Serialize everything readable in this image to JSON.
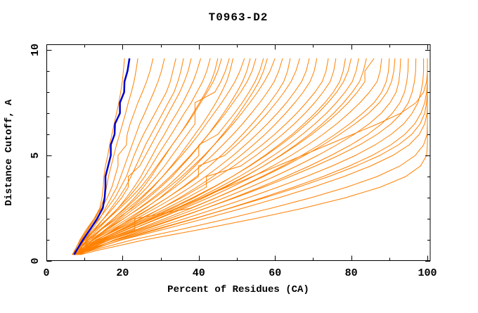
{
  "window": {
    "background": "#ffffff"
  },
  "chart_data": {
    "type": "line",
    "title": "T0963-D2",
    "xlabel": "Percent of Residues (CA)",
    "ylabel": "Distance Cutoff, A",
    "xlim": [
      0,
      100
    ],
    "ylim": [
      0,
      10
    ],
    "x_major_ticks": [
      0,
      20,
      40,
      60,
      80,
      100
    ],
    "x_minor_ticks": [
      10,
      30,
      50,
      70,
      90
    ],
    "y_major_ticks": [
      0,
      5,
      10
    ],
    "y_minor_ticks": [
      1,
      2,
      3,
      4,
      6,
      7,
      8,
      9
    ],
    "grid": false,
    "legend": "none",
    "axis_color": "#000000",
    "reference_color": "#0000cd",
    "model_color": "#ff8000",
    "cutoffs": [
      0.3,
      0.5,
      1,
      1.5,
      2,
      2.5,
      3,
      3.5,
      4,
      4.5,
      5,
      5.5,
      6,
      6.5,
      7,
      7.5,
      8,
      8.5,
      9,
      9.6
    ],
    "reference_series": {
      "name": "blue-reference",
      "values": [
        7.3,
        7.9,
        9.6,
        11.5,
        13.3,
        14.8,
        15.3,
        15.5,
        15.5,
        16.2,
        16.9,
        16.9,
        17.9,
        18.0,
        19.3,
        19.3,
        20.4,
        20.5,
        21.3,
        21.8
      ]
    },
    "model_series": [
      [
        7.0,
        7.5,
        8.8,
        10.5,
        12.5,
        14.0,
        14.6,
        14.9,
        15.1,
        15.5,
        16.1,
        16.6,
        17.2,
        17.8,
        18.4,
        19.0,
        19.5,
        19.9,
        20.2,
        20.5
      ],
      [
        7.2,
        7.8,
        9.2,
        11.0,
        12.8,
        14.2,
        15.2,
        15.8,
        16.3,
        17.0,
        17.7,
        18.4,
        19.2,
        20.0,
        20.8,
        21.5,
        22.3,
        23.0,
        23.5,
        24.0
      ],
      [
        6.8,
        7.4,
        9.0,
        10.8,
        12.5,
        14.5,
        16.0,
        17.2,
        18.0,
        18.8,
        18.8,
        21.0,
        21.2,
        22.0,
        23.0,
        24.0,
        25.2,
        26.3,
        27.2,
        28.0
      ],
      [
        7.5,
        8.2,
        10.0,
        12.0,
        14.0,
        15.5,
        17.0,
        18.5,
        19.5,
        20.5,
        21.5,
        22.5,
        23.5,
        24.5,
        25.8,
        27.0,
        28.2,
        29.3,
        30.2,
        31.0
      ],
      [
        7.0,
        7.8,
        9.5,
        11.5,
        13.8,
        16.0,
        18.0,
        19.5,
        21.0,
        22.0,
        23.0,
        24.2,
        25.5,
        27.0,
        28.5,
        30.0,
        31.5,
        32.5,
        33.2,
        34.0
      ],
      [
        8.0,
        8.8,
        10.5,
        12.8,
        15.0,
        17.0,
        19.0,
        20.8,
        22.2,
        23.5,
        24.8,
        26.0,
        27.5,
        29.0,
        30.5,
        32.0,
        33.5,
        34.5,
        35.3,
        36.0
      ],
      [
        7.3,
        8.0,
        10.0,
        12.5,
        15.0,
        17.5,
        19.8,
        21.5,
        21.5,
        24.5,
        26.0,
        27.5,
        29.0,
        30.5,
        32.0,
        33.5,
        35.0,
        36.2,
        37.2,
        38.0
      ],
      [
        7.8,
        8.6,
        10.8,
        13.5,
        16.2,
        18.8,
        21.0,
        23.0,
        24.8,
        26.3,
        27.8,
        29.3,
        31.0,
        32.5,
        34.2,
        35.8,
        37.2,
        38.5,
        39.5,
        40.5
      ],
      [
        7.0,
        8.0,
        10.2,
        13.0,
        16.0,
        18.8,
        21.5,
        23.8,
        25.8,
        27.5,
        29.2,
        31.0,
        32.8,
        34.5,
        36.2,
        38.0,
        39.5,
        41.0,
        42.1,
        43.0
      ],
      [
        8.2,
        9.0,
        11.5,
        14.5,
        17.5,
        20.5,
        23.2,
        25.5,
        27.5,
        29.3,
        31.2,
        33.0,
        35.0,
        36.8,
        38.5,
        40.2,
        41.8,
        43.2,
        44.2,
        45.0
      ],
      [
        6.9,
        7.8,
        10.0,
        13.0,
        16.2,
        19.3,
        22.2,
        24.8,
        27.0,
        29.0,
        31.0,
        33.0,
        35.0,
        37.0,
        38.8,
        40.5,
        42.2,
        43.8,
        45.0,
        46.0
      ],
      [
        7.5,
        8.5,
        11.0,
        14.2,
        17.5,
        20.8,
        23.8,
        26.5,
        28.8,
        31.0,
        33.0,
        35.0,
        37.0,
        39.0,
        39.0,
        39.0,
        44.2,
        45.8,
        47.0,
        48.0
      ],
      [
        8.5,
        9.5,
        12.2,
        15.5,
        19.0,
        22.2,
        25.2,
        28.0,
        30.5,
        32.8,
        35.0,
        37.0,
        39.0,
        41.0,
        42.8,
        44.5,
        46.0,
        47.3,
        48.2,
        49.0
      ],
      [
        7.2,
        8.2,
        11.0,
        14.5,
        18.0,
        21.5,
        24.8,
        27.8,
        30.5,
        33.0,
        35.5,
        37.8,
        40.0,
        42.0,
        44.0,
        46.0,
        47.8,
        49.5,
        50.8,
        52.0
      ],
      [
        8.0,
        9.0,
        12.0,
        15.8,
        19.5,
        23.2,
        26.8,
        30.0,
        33.0,
        35.5,
        38.0,
        40.3,
        42.5,
        44.5,
        46.5,
        48.3,
        50.0,
        51.5,
        52.6,
        53.5
      ],
      [
        6.7,
        7.8,
        10.8,
        14.5,
        18.5,
        22.5,
        26.2,
        29.5,
        32.5,
        35.2,
        37.8,
        40.2,
        42.5,
        44.8,
        47.0,
        49.0,
        51.0,
        52.7,
        54.0,
        55.0
      ],
      [
        7.8,
        9.0,
        12.2,
        16.2,
        20.3,
        24.3,
        28.0,
        31.5,
        34.5,
        37.3,
        40.0,
        40.0,
        45.0,
        47.2,
        49.4,
        51.4,
        53.2,
        54.8,
        56.0,
        57.0
      ],
      [
        8.8,
        10.0,
        13.5,
        17.8,
        22.0,
        26.0,
        29.8,
        33.2,
        36.2,
        39.0,
        41.6,
        44.0,
        46.3,
        48.5,
        50.5,
        52.4,
        54.2,
        55.8,
        57.0,
        58.0
      ],
      [
        7.0,
        8.2,
        11.5,
        15.8,
        20.2,
        24.5,
        28.5,
        32.2,
        35.5,
        38.5,
        41.4,
        44.0,
        46.6,
        49.0,
        51.3,
        53.4,
        55.4,
        57.2,
        58.7,
        60.0
      ],
      [
        7.5,
        8.8,
        12.2,
        16.8,
        21.3,
        25.8,
        30.0,
        33.8,
        37.3,
        40.5,
        43.5,
        46.3,
        49.0,
        51.5,
        53.8,
        56.0,
        58.0,
        59.8,
        61.0,
        62.0
      ],
      [
        8.3,
        9.6,
        13.2,
        18.0,
        22.8,
        27.4,
        31.8,
        35.8,
        39.4,
        42.8,
        45.9,
        48.8,
        51.5,
        54.0,
        56.4,
        58.6,
        60.6,
        62.3,
        63.3,
        64.0
      ],
      [
        7.2,
        8.6,
        12.4,
        17.4,
        22.4,
        27.2,
        31.8,
        36.0,
        39.9,
        39.9,
        46.8,
        49.9,
        52.8,
        55.5,
        58.0,
        60.3,
        62.4,
        64.2,
        65.5,
        66.5
      ],
      [
        7.8,
        9.2,
        13.2,
        18.4,
        23.6,
        28.6,
        33.4,
        37.8,
        41.8,
        45.5,
        49.0,
        52.2,
        55.2,
        58.0,
        60.6,
        63.0,
        65.1,
        67.0,
        68.2,
        69.0
      ],
      [
        8.6,
        10.0,
        14.2,
        19.6,
        25.0,
        30.2,
        35.0,
        39.5,
        43.7,
        47.5,
        51.0,
        54.3,
        57.4,
        60.2,
        62.8,
        65.2,
        67.4,
        69.2,
        70.3,
        71.0
      ],
      [
        7.0,
        8.6,
        13.0,
        18.8,
        24.6,
        30.2,
        35.5,
        40.4,
        45.0,
        49.2,
        53.0,
        56.6,
        59.9,
        62.9,
        65.7,
        68.2,
        70.5,
        72.4,
        73.4,
        74.0
      ],
      [
        7.6,
        9.2,
        13.8,
        19.8,
        25.8,
        31.6,
        37.0,
        42.0,
        42.0,
        51.0,
        55.0,
        58.6,
        62.0,
        65.1,
        67.9,
        70.4,
        72.6,
        74.5,
        75.4,
        76.0
      ],
      [
        8.2,
        9.9,
        14.8,
        21.0,
        27.2,
        33.2,
        38.8,
        44.0,
        48.8,
        53.2,
        57.3,
        61.0,
        64.5,
        67.6,
        70.5,
        73.1,
        75.3,
        77.0,
        77.9,
        78.5
      ],
      [
        7.3,
        9.0,
        13.9,
        20.2,
        26.5,
        32.6,
        38.4,
        43.8,
        48.8,
        53.4,
        57.6,
        61.5,
        65.1,
        68.3,
        71.3,
        73.9,
        76.2,
        78.0,
        79.2,
        80.0
      ],
      [
        7.9,
        9.7,
        14.8,
        21.3,
        27.8,
        34.1,
        40.0,
        45.5,
        50.6,
        55.3,
        59.6,
        63.6,
        67.2,
        70.5,
        73.5,
        76.1,
        78.4,
        80.3,
        81.3,
        82.0
      ],
      [
        8.7,
        10.5,
        15.8,
        22.4,
        29.0,
        35.4,
        41.4,
        47.0,
        52.2,
        57.0,
        61.4,
        65.4,
        69.1,
        72.4,
        75.4,
        78.0,
        80.3,
        82.2,
        83.2,
        84.0
      ],
      [
        7.1,
        9.0,
        14.4,
        21.2,
        28.0,
        34.6,
        40.8,
        46.6,
        52.0,
        57.0,
        61.6,
        65.8,
        69.7,
        73.2,
        76.4,
        79.2,
        81.6,
        83.6,
        83.6,
        86.0
      ],
      [
        7.7,
        9.7,
        15.3,
        22.4,
        29.4,
        36.2,
        42.6,
        48.6,
        54.2,
        59.4,
        64.2,
        68.6,
        72.6,
        76.2,
        79.4,
        82.3,
        84.8,
        86.8,
        87.6,
        88.0
      ],
      [
        8.4,
        10.5,
        16.4,
        23.8,
        31.0,
        38.0,
        44.6,
        50.8,
        56.6,
        62.0,
        67.0,
        71.6,
        75.8,
        79.6,
        83.0,
        86.0,
        88.0,
        89.2,
        89.8,
        90.0
      ],
      [
        7.4,
        9.6,
        15.6,
        23.2,
        23.2,
        37.8,
        44.6,
        51.0,
        57.0,
        62.6,
        67.8,
        72.6,
        77.0,
        81.0,
        84.6,
        87.4,
        89.4,
        90.6,
        91.2,
        91.5
      ],
      [
        8.0,
        10.3,
        16.6,
        24.4,
        32.2,
        39.7,
        46.8,
        53.5,
        59.8,
        65.7,
        71.2,
        76.2,
        80.8,
        84.7,
        87.9,
        90.2,
        91.8,
        92.5,
        92.8,
        93.0
      ],
      [
        8.8,
        11.2,
        17.8,
        26.0,
        34.0,
        41.8,
        49.2,
        56.2,
        62.8,
        69.0,
        74.7,
        79.9,
        84.4,
        88.0,
        90.8,
        92.8,
        94.0,
        94.6,
        94.9,
        95.0
      ],
      [
        7.2,
        9.8,
        16.6,
        25.2,
        33.6,
        41.8,
        49.6,
        57.0,
        64.0,
        70.6,
        76.7,
        82.2,
        86.8,
        90.5,
        93.2,
        95.0,
        96.0,
        96.6,
        96.9,
        97.0
      ],
      [
        7.8,
        10.6,
        18.0,
        27.2,
        36.2,
        44.8,
        53.0,
        60.8,
        68.2,
        75.0,
        81.1,
        86.3,
        90.5,
        93.8,
        96.0,
        97.5,
        98.3,
        98.8,
        99.0,
        99.0
      ],
      [
        8.5,
        11.5,
        19.4,
        29.2,
        38.8,
        48.0,
        56.7,
        64.9,
        72.6,
        79.5,
        85.5,
        90.4,
        94.1,
        96.7,
        98.3,
        99.3,
        99.8,
        100,
        100,
        100
      ],
      [
        6.8,
        10.0,
        18.4,
        28.6,
        38.6,
        48.2,
        57.4,
        66.1,
        74.1,
        81.3,
        87.5,
        92.4,
        95.9,
        98.1,
        99.3,
        99.8,
        100,
        100,
        100,
        100
      ],
      [
        7.4,
        10.8,
        19.8,
        30.8,
        41.4,
        51.5,
        61.1,
        70.0,
        78.1,
        85.1,
        90.9,
        95.2,
        97.9,
        99.3,
        99.9,
        100,
        100,
        100,
        100,
        100
      ],
      [
        8.1,
        12.0,
        22.6,
        35.4,
        47.6,
        59.0,
        69.5,
        78.9,
        86.8,
        92.8,
        96.8,
        99.0,
        99.9,
        100,
        100,
        100,
        100,
        100,
        100,
        100
      ],
      [
        8.9,
        13.4,
        25.8,
        40.6,
        54.6,
        67.4,
        78.6,
        87.7,
        94.3,
        98.2,
        99.8,
        100,
        100,
        100,
        100,
        100,
        100,
        100,
        100,
        100
      ],
      [
        7.6,
        9.4,
        14.6,
        21.0,
        27.6,
        34.2,
        40.8,
        47.4,
        54.0,
        60.6,
        67.2,
        73.8,
        80.4,
        87.0,
        93.0,
        97.0,
        99.0,
        99.8,
        100,
        100
      ]
    ]
  }
}
